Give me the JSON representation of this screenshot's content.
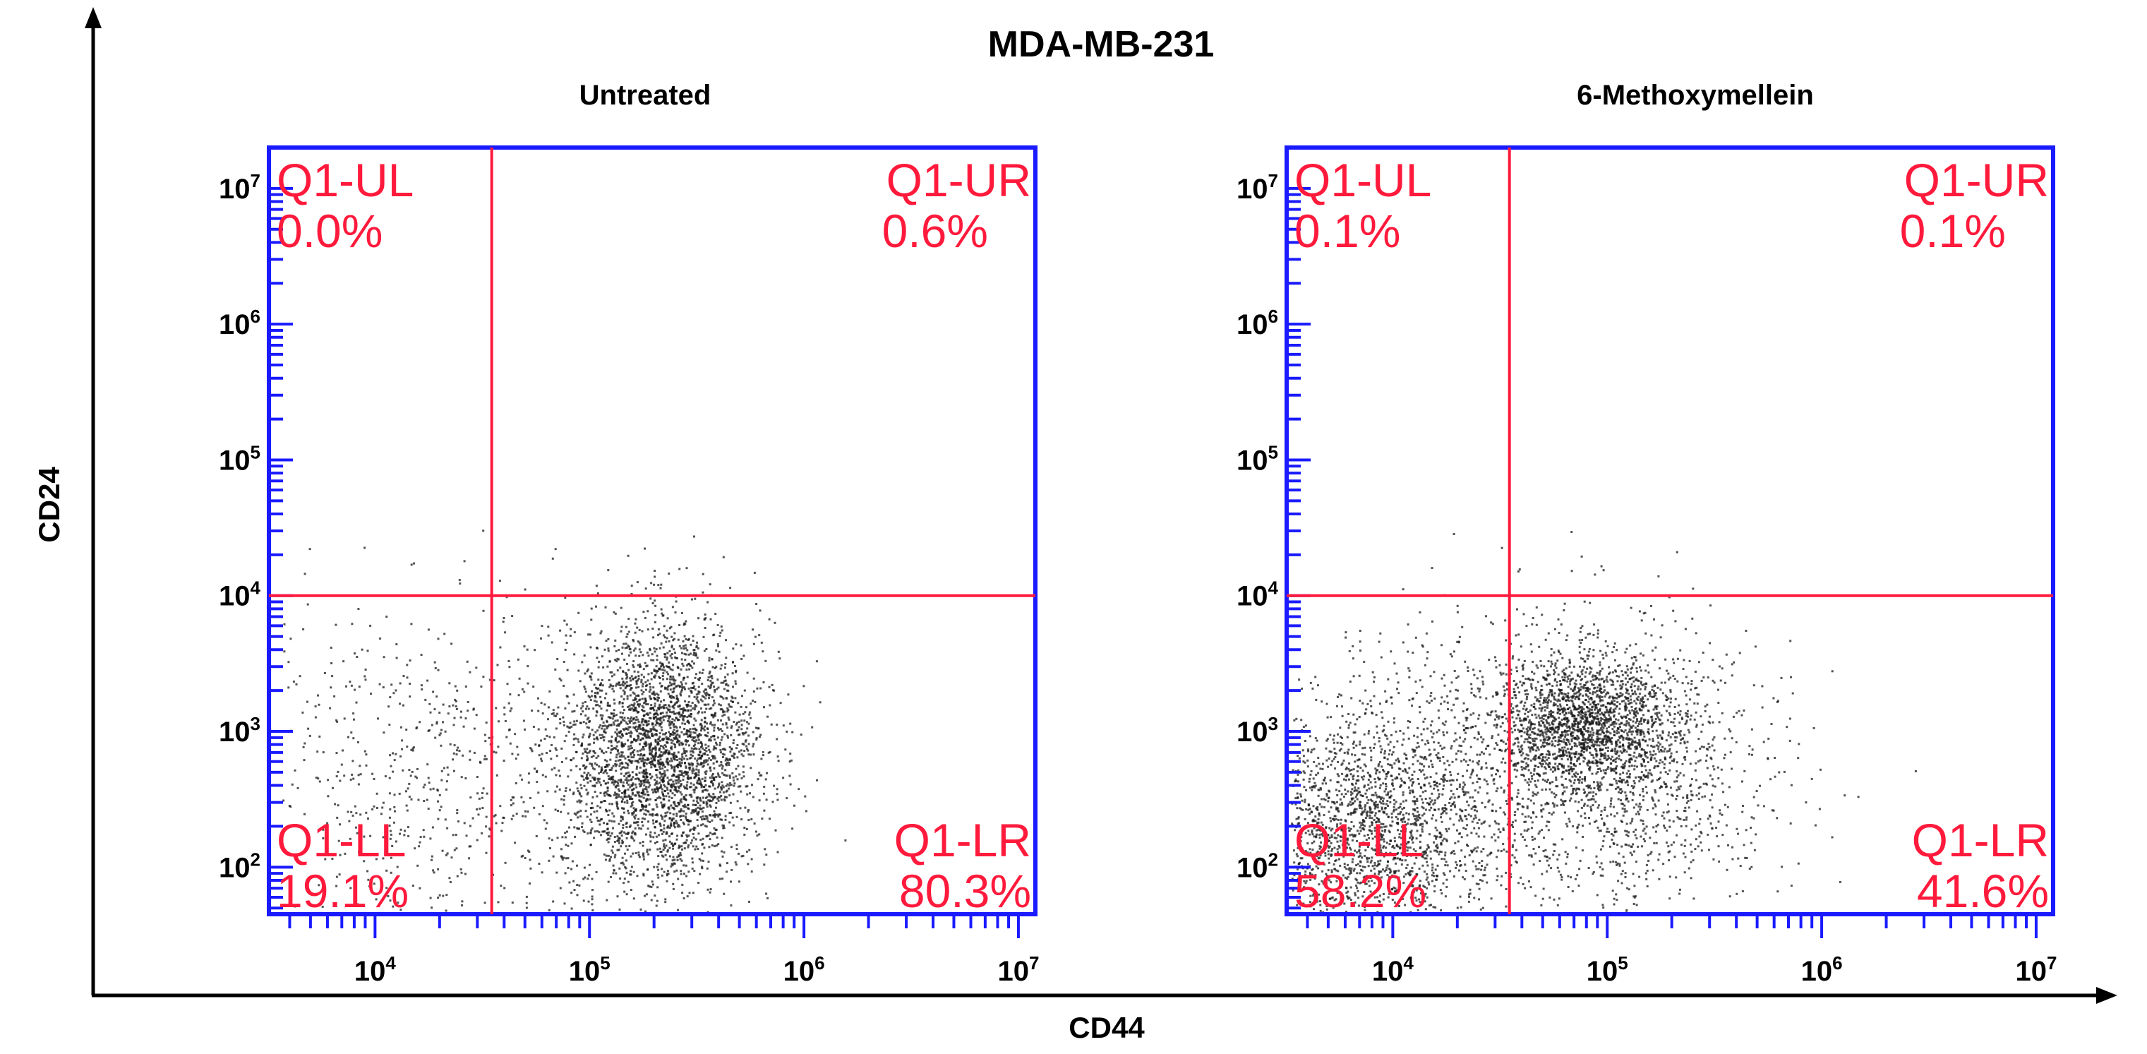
{
  "chart_data": {
    "type": "scatter",
    "title": "MDA-MB-231",
    "xlabel": "CD44",
    "ylabel": "CD24",
    "xscale": "log",
    "yscale": "log",
    "xlim": [
      3200,
      12000000
    ],
    "ylim": [
      45,
      20000000
    ],
    "x_tick_labels": [
      "10",
      "10",
      "10",
      "10"
    ],
    "x_tick_exponents": [
      "4",
      "5",
      "6",
      "7"
    ],
    "y_tick_labels": [
      "10",
      "10",
      "10",
      "10",
      "10",
      "10"
    ],
    "y_tick_exponents": [
      "2",
      "3",
      "4",
      "5",
      "6",
      "7"
    ],
    "gate_x": 35000,
    "gate_y": 10000,
    "axis_color": "#1a1aff",
    "gate_color": "#ff1a3c",
    "point_color": "#1a1a1a",
    "panels": [
      {
        "title": "Untreated",
        "quadrants": [
          {
            "name": "Q1-UL",
            "value": "0.0%"
          },
          {
            "name": "Q1-UR",
            "value": "0.6%"
          },
          {
            "name": "Q1-LL",
            "value": "19.1%"
          },
          {
            "name": "Q1-LR",
            "value": "80.3%"
          }
        ],
        "populations": [
          {
            "log_x_mean": 5.33,
            "log_y_mean": 2.85,
            "log_x_sd": 0.23,
            "log_y_sd": 0.48,
            "count": 3300
          },
          {
            "log_x_mean": 4.3,
            "log_y_mean": 2.7,
            "log_x_sd": 0.48,
            "log_y_sd": 0.6,
            "count": 700
          }
        ]
      },
      {
        "title": "6-Methoxymellein",
        "quadrants": [
          {
            "name": "Q1-UL",
            "value": "0.1%"
          },
          {
            "name": "Q1-UR",
            "value": "0.1%"
          },
          {
            "name": "Q1-LL",
            "value": "58.2%"
          },
          {
            "name": "Q1-LR",
            "value": "41.6%"
          }
        ],
        "populations": [
          {
            "log_x_mean": 4.9,
            "log_y_mean": 3.05,
            "log_x_sd": 0.2,
            "log_y_sd": 0.25,
            "count": 1700
          },
          {
            "log_x_mean": 5.05,
            "log_y_mean": 2.7,
            "log_x_sd": 0.38,
            "log_y_sd": 0.5,
            "count": 1200
          },
          {
            "log_x_mean": 3.85,
            "log_y_mean": 2.25,
            "log_x_sd": 0.3,
            "log_y_sd": 0.35,
            "count": 1600
          },
          {
            "log_x_mean": 4.2,
            "log_y_mean": 2.8,
            "log_x_sd": 0.45,
            "log_y_sd": 0.55,
            "count": 900
          }
        ]
      }
    ]
  }
}
